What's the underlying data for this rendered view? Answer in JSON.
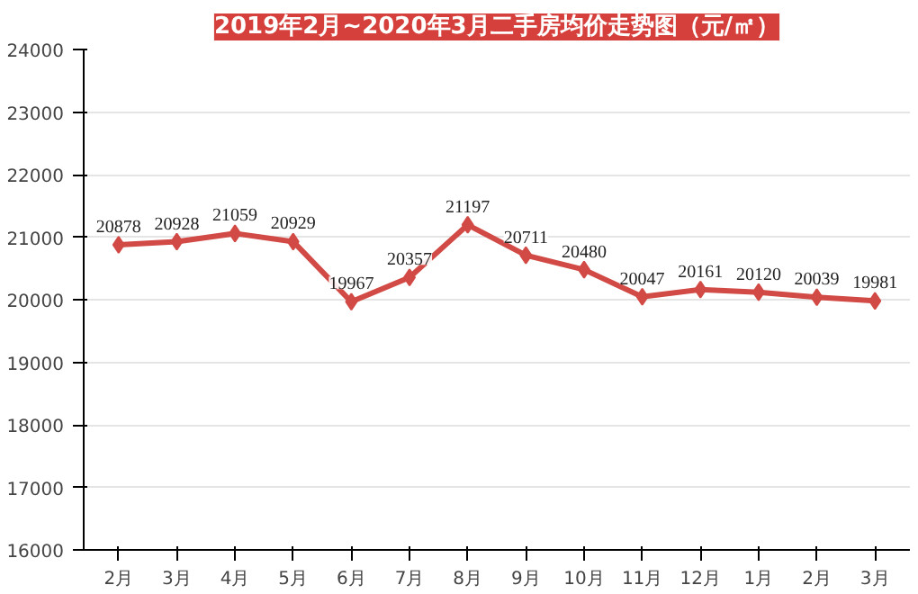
{
  "chart_data": {
    "type": "line",
    "title": "2019年2月~2020年3月二手房均价走势图（元/㎡）",
    "categories": [
      "2月",
      "3月",
      "4月",
      "5月",
      "6月",
      "7月",
      "8月",
      "9月",
      "10月",
      "11月",
      "12月",
      "1月",
      "2月",
      "3月"
    ],
    "series": [
      {
        "color": "#d24a45",
        "values": [
          20878,
          20928,
          21059,
          20929,
          19967,
          20357,
          21197,
          20711,
          20480,
          20047,
          20161,
          20120,
          20039,
          19981
        ]
      }
    ],
    "ylim": [
      16000,
      24000
    ],
    "yticks": [
      16000,
      17000,
      18000,
      19000,
      20000,
      21000,
      22000,
      23000,
      24000
    ],
    "grid": "y",
    "marker": "diamond",
    "line_style": "solid",
    "data_labels": true
  }
}
